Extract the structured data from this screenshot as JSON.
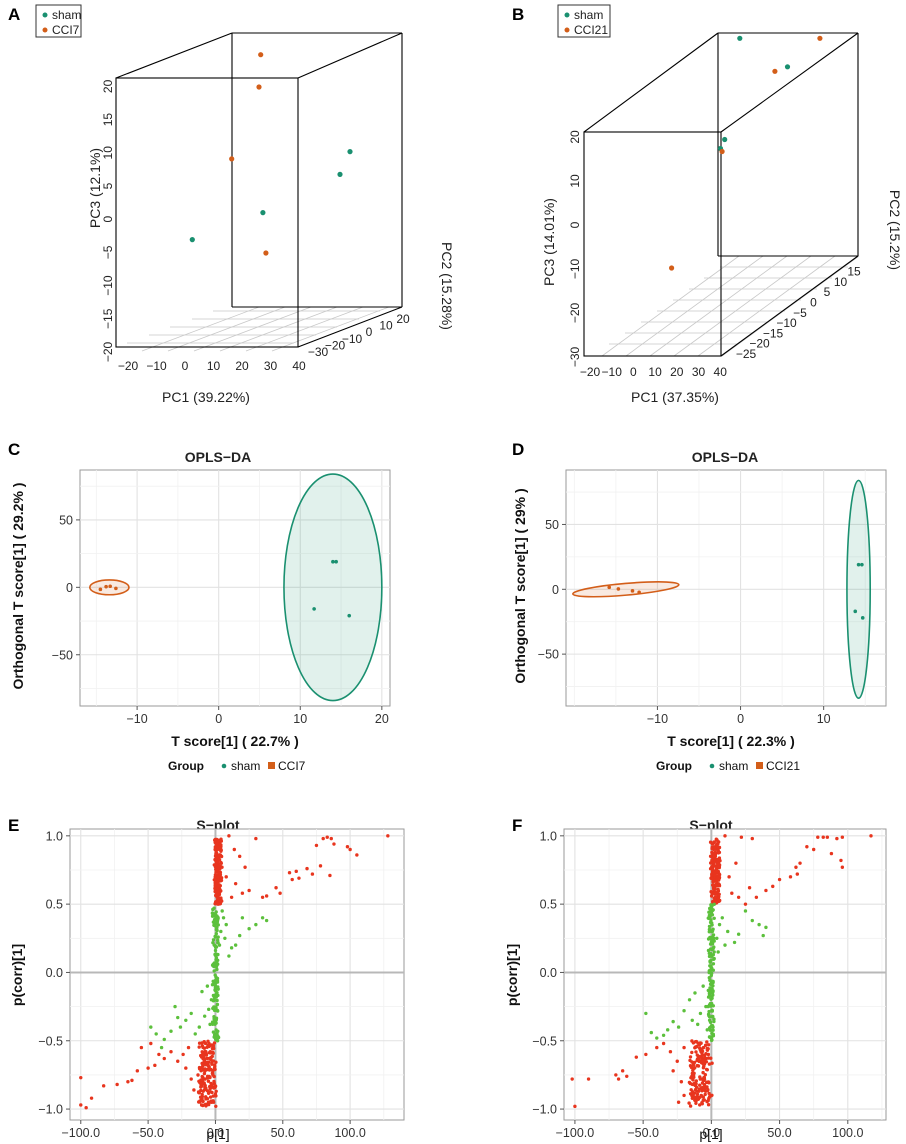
{
  "colors": {
    "sham": "#1a9070",
    "cci": "#d35e19",
    "green_pt": "#5cc03c",
    "red_pt": "#e8351e",
    "grid": "#e6e6e6",
    "axis0": "#b8b8b8"
  },
  "panels": {
    "A": "A",
    "B": "B",
    "C": "C",
    "D": "D",
    "E": "E",
    "F": "F"
  },
  "chart_data": [
    {
      "id": "A",
      "type": "scatter3d",
      "legend": [
        "sham",
        "CCI7"
      ],
      "xlabel": "PC1 (39.22%)",
      "ylabel": "PC3 (12.1%)",
      "zlabel": "PC2 (15.28%)",
      "x_ticks": [
        "−20",
        "−10",
        "0",
        "10",
        "20",
        "30",
        "40"
      ],
      "y_ticks": [
        "−20",
        "−15",
        "−10",
        "−5",
        "0",
        "5",
        "10",
        "15",
        "20"
      ],
      "z_ticks": [
        "−30",
        "−20",
        "−10",
        "0",
        "10",
        "20"
      ],
      "points": [
        {
          "group": "sham",
          "pc1": -12,
          "pc2": -5,
          "pc3": -7
        },
        {
          "group": "sham",
          "pc1": 17,
          "pc2": -15,
          "pc3": -2
        },
        {
          "group": "sham",
          "pc1": 27,
          "pc2": 12,
          "pc3": 1
        },
        {
          "group": "sham",
          "pc1": 28,
          "pc2": 16,
          "pc3": 4
        },
        {
          "group": "CCI7",
          "pc1": 1,
          "pc2": -5,
          "pc3": 5
        },
        {
          "group": "CCI7",
          "pc1": 2,
          "pc2": 10,
          "pc3": 19
        },
        {
          "group": "CCI7",
          "pc1": 6,
          "pc2": 2,
          "pc3": 15
        },
        {
          "group": "CCI7",
          "pc1": 18,
          "pc2": -15,
          "pc3": -8
        }
      ]
    },
    {
      "id": "B",
      "type": "scatter3d",
      "legend": [
        "sham",
        "CCI21"
      ],
      "xlabel": "PC1 (37.35%)",
      "ylabel": "PC3 (14.01%)",
      "zlabel": "PC2 (15.2%)",
      "x_ticks": [
        "−20",
        "−10",
        "0",
        "10",
        "20",
        "30",
        "40"
      ],
      "y_ticks": [
        "−30",
        "−20",
        "−10",
        "0",
        "10",
        "20"
      ],
      "z_ticks": [
        "−25",
        "−20",
        "−15",
        "−10",
        "−5",
        "0",
        "5",
        "10",
        "15"
      ],
      "points": [
        {
          "group": "sham",
          "pc1": -12,
          "pc2": 15,
          "pc3": 20
        },
        {
          "group": "sham",
          "pc1": 35,
          "pc2": -3,
          "pc3": 22
        },
        {
          "group": "sham",
          "pc1": 33,
          "pc2": -25,
          "pc3": 14
        },
        {
          "group": "sham",
          "pc1": 35,
          "pc2": -25,
          "pc3": 16
        },
        {
          "group": "CCI21",
          "pc1": 26,
          "pc2": 15,
          "pc3": 20
        },
        {
          "group": "CCI21",
          "pc1": 29,
          "pc2": -3,
          "pc3": 21
        },
        {
          "group": "CCI21",
          "pc1": 27,
          "pc2": -20,
          "pc3": 11
        },
        {
          "group": "CCI21",
          "pc1": 3,
          "pc2": -20,
          "pc3": -15
        }
      ]
    },
    {
      "id": "C",
      "type": "scatter",
      "title": "OPLS−DA",
      "xlabel": "T score[1] ( 22.7% )",
      "ylabel": "Orthogonal T score[1] ( 29.2% )",
      "xlim": [
        -17,
        21
      ],
      "ylim": [
        -88,
        87
      ],
      "x_ticks": [
        -10,
        0,
        10,
        20
      ],
      "y_ticks": [
        -50,
        0,
        50
      ],
      "legend_title": "Group",
      "legend": [
        "sham",
        "CCI7"
      ],
      "points": [
        {
          "group": "CCI7",
          "x": -14.5,
          "y": -1.5
        },
        {
          "group": "CCI7",
          "x": -13.8,
          "y": 0.5
        },
        {
          "group": "CCI7",
          "x": -13.3,
          "y": 0.8
        },
        {
          "group": "CCI7",
          "x": -12.6,
          "y": -0.8
        },
        {
          "group": "sham",
          "x": 14.0,
          "y": 19
        },
        {
          "group": "sham",
          "x": 14.4,
          "y": 19
        },
        {
          "group": "sham",
          "x": 11.7,
          "y": -16
        },
        {
          "group": "sham",
          "x": 16.0,
          "y": -21
        }
      ],
      "ellipses": [
        {
          "group": "CCI7",
          "cx": -13.4,
          "cy": 0,
          "rx": 2.4,
          "ry": 5.5,
          "angle": 0
        },
        {
          "group": "sham",
          "cx": 14.0,
          "cy": 0,
          "rx": 6.0,
          "ry": 84,
          "angle": 0
        }
      ]
    },
    {
      "id": "D",
      "type": "scatter",
      "title": "OPLS−DA",
      "xlabel": "T score[1] ( 22.3% )",
      "ylabel": "Orthogonal T score[1] ( 29% )",
      "xlim": [
        -21,
        17.5
      ],
      "ylim": [
        -90,
        92
      ],
      "x_ticks": [
        -10,
        0,
        10
      ],
      "y_ticks": [
        -50,
        0,
        50
      ],
      "legend_title": "Group",
      "legend": [
        "sham",
        "CCI21"
      ],
      "points": [
        {
          "group": "CCI21",
          "x": -15.8,
          "y": 1.5
        },
        {
          "group": "CCI21",
          "x": -14.7,
          "y": 0.3
        },
        {
          "group": "CCI21",
          "x": -13.0,
          "y": -1.2
        },
        {
          "group": "CCI21",
          "x": -12.2,
          "y": -2.3
        },
        {
          "group": "sham",
          "x": 14.2,
          "y": 19
        },
        {
          "group": "sham",
          "x": 14.6,
          "y": 19
        },
        {
          "group": "sham",
          "x": 13.8,
          "y": -17
        },
        {
          "group": "sham",
          "x": 14.7,
          "y": -22
        }
      ],
      "ellipses": [
        {
          "group": "CCI21",
          "cx": -13.8,
          "cy": 0,
          "rx": 6.4,
          "ry": 4.5,
          "angle": -5
        },
        {
          "group": "sham",
          "cx": 14.2,
          "cy": 0,
          "rx": 1.4,
          "ry": 84,
          "angle": 0
        }
      ]
    },
    {
      "id": "E",
      "type": "scatter",
      "title": "S−plot",
      "xlabel": "p[1]",
      "ylabel": "p(corr)[1]",
      "xlim": [
        -108,
        140
      ],
      "ylim": [
        -1.08,
        1.05
      ],
      "x_ticks": [
        -100,
        -50,
        0,
        50,
        100
      ],
      "y_ticks": [
        -1.0,
        -0.5,
        0.0,
        0.5,
        1.0
      ],
      "tick_decimals": 1,
      "dense_regions": [
        {
          "color": "red",
          "n": 170,
          "x": [
            -1,
            5
          ],
          "y": [
            0.5,
            0.98
          ]
        },
        {
          "color": "red",
          "n": 170,
          "x": [
            -14,
            1
          ],
          "y": [
            -0.98,
            -0.5
          ]
        },
        {
          "color": "green",
          "n": 140,
          "x": [
            -2.5,
            2.5
          ],
          "y": [
            -0.5,
            0.5
          ]
        }
      ],
      "points_red": [
        [
          10,
          1.0
        ],
        [
          30,
          0.98
        ],
        [
          80,
          0.98
        ],
        [
          83,
          0.99
        ],
        [
          86,
          0.98
        ],
        [
          128,
          1.0
        ],
        [
          75,
          0.93
        ],
        [
          88,
          0.94
        ],
        [
          98,
          0.92
        ],
        [
          100,
          0.9
        ],
        [
          105,
          0.86
        ],
        [
          68,
          0.76
        ],
        [
          72,
          0.72
        ],
        [
          78,
          0.78
        ],
        [
          85,
          0.71
        ],
        [
          55,
          0.73
        ],
        [
          60,
          0.74
        ],
        [
          57,
          0.68
        ],
        [
          62,
          0.69
        ],
        [
          45,
          0.62
        ],
        [
          48,
          0.58
        ],
        [
          38,
          0.56
        ],
        [
          35,
          0.55
        ],
        [
          25,
          0.6
        ],
        [
          20,
          0.58
        ],
        [
          15,
          0.65
        ],
        [
          12,
          0.55
        ],
        [
          8,
          0.7
        ],
        [
          18,
          0.85
        ],
        [
          22,
          0.77
        ],
        [
          14,
          0.9
        ],
        [
          -100,
          -0.77
        ],
        [
          -100,
          -0.97
        ],
        [
          -96,
          -0.99
        ],
        [
          -92,
          -0.92
        ],
        [
          -83,
          -0.83
        ],
        [
          -73,
          -0.82
        ],
        [
          -65,
          -0.8
        ],
        [
          -62,
          -0.79
        ],
        [
          -58,
          -0.72
        ],
        [
          -50,
          -0.7
        ],
        [
          -45,
          -0.68
        ],
        [
          -42,
          -0.6
        ],
        [
          -38,
          -0.63
        ],
        [
          -33,
          -0.58
        ],
        [
          -55,
          -0.55
        ],
        [
          -48,
          -0.52
        ],
        [
          -20,
          -0.55
        ],
        [
          -24,
          -0.6
        ],
        [
          -28,
          -0.65
        ],
        [
          -22,
          -0.7
        ],
        [
          -18,
          -0.78
        ],
        [
          -16,
          -0.86
        ]
      ],
      "points_green": [
        [
          20,
          0.4
        ],
        [
          25,
          0.32
        ],
        [
          30,
          0.35
        ],
        [
          35,
          0.4
        ],
        [
          38,
          0.38
        ],
        [
          18,
          0.27
        ],
        [
          15,
          0.2
        ],
        [
          12,
          0.18
        ],
        [
          10,
          0.12
        ],
        [
          8,
          0.35
        ],
        [
          7,
          0.25
        ],
        [
          6,
          0.4
        ],
        [
          5,
          0.45
        ],
        [
          4,
          0.3
        ],
        [
          3,
          0.2
        ],
        [
          -3,
          -0.2
        ],
        [
          -5,
          -0.27
        ],
        [
          -8,
          -0.32
        ],
        [
          -12,
          -0.4
        ],
        [
          -15,
          -0.45
        ],
        [
          -18,
          -0.3
        ],
        [
          -22,
          -0.35
        ],
        [
          -26,
          -0.4
        ],
        [
          -28,
          -0.33
        ],
        [
          -30,
          -0.25
        ],
        [
          -33,
          -0.43
        ],
        [
          -38,
          -0.49
        ],
        [
          -40,
          -0.55
        ],
        [
          -44,
          -0.45
        ],
        [
          -48,
          -0.4
        ],
        [
          -10,
          -0.14
        ],
        [
          -6,
          -0.1
        ],
        [
          -4,
          -0.38
        ]
      ]
    },
    {
      "id": "F",
      "type": "scatter",
      "title": "S−plot",
      "xlabel": "p[1]",
      "ylabel": "p(corr)[1]",
      "xlim": [
        -108,
        128
      ],
      "ylim": [
        -1.08,
        1.05
      ],
      "x_ticks": [
        -100,
        -50,
        0,
        50,
        100
      ],
      "y_ticks": [
        -1.0,
        -0.5,
        0.0,
        0.5,
        1.0
      ],
      "tick_decimals": 1,
      "dense_regions": [
        {
          "color": "red",
          "n": 170,
          "x": [
            -1,
            7
          ],
          "y": [
            0.5,
            0.98
          ]
        },
        {
          "color": "red",
          "n": 170,
          "x": [
            -18,
            1
          ],
          "y": [
            -0.98,
            -0.5
          ]
        },
        {
          "color": "green",
          "n": 140,
          "x": [
            -2.5,
            2.5
          ],
          "y": [
            -0.5,
            0.5
          ]
        }
      ],
      "points_red": [
        [
          10,
          1.0
        ],
        [
          22,
          0.99
        ],
        [
          30,
          0.98
        ],
        [
          78,
          0.99
        ],
        [
          82,
          0.99
        ],
        [
          85,
          0.99
        ],
        [
          92,
          0.98
        ],
        [
          96,
          0.99
        ],
        [
          117,
          1.0
        ],
        [
          70,
          0.92
        ],
        [
          75,
          0.9
        ],
        [
          88,
          0.87
        ],
        [
          95,
          0.82
        ],
        [
          96,
          0.77
        ],
        [
          65,
          0.8
        ],
        [
          62,
          0.77
        ],
        [
          63,
          0.72
        ],
        [
          58,
          0.7
        ],
        [
          50,
          0.68
        ],
        [
          45,
          0.63
        ],
        [
          40,
          0.6
        ],
        [
          33,
          0.55
        ],
        [
          28,
          0.62
        ],
        [
          25,
          0.5
        ],
        [
          20,
          0.55
        ],
        [
          15,
          0.58
        ],
        [
          13,
          0.7
        ],
        [
          18,
          0.8
        ],
        [
          -102,
          -0.78
        ],
        [
          -100,
          -0.98
        ],
        [
          -90,
          -0.78
        ],
        [
          -70,
          -0.75
        ],
        [
          -68,
          -0.78
        ],
        [
          -65,
          -0.72
        ],
        [
          -62,
          -0.76
        ],
        [
          -55,
          -0.62
        ],
        [
          -48,
          -0.6
        ],
        [
          -40,
          -0.55
        ],
        [
          -35,
          -0.52
        ],
        [
          -30,
          -0.58
        ],
        [
          -25,
          -0.65
        ],
        [
          -28,
          -0.72
        ],
        [
          -22,
          -0.8
        ],
        [
          -20,
          -0.9
        ],
        [
          -24,
          -0.95
        ],
        [
          -20,
          -0.55
        ]
      ],
      "points_green": [
        [
          25,
          0.45
        ],
        [
          30,
          0.38
        ],
        [
          35,
          0.35
        ],
        [
          40,
          0.33
        ],
        [
          38,
          0.27
        ],
        [
          20,
          0.28
        ],
        [
          17,
          0.22
        ],
        [
          12,
          0.3
        ],
        [
          10,
          0.2
        ],
        [
          8,
          0.4
        ],
        [
          6,
          0.35
        ],
        [
          5,
          0.15
        ],
        [
          4,
          0.25
        ],
        [
          -4,
          -0.25
        ],
        [
          -8,
          -0.3
        ],
        [
          -10,
          -0.38
        ],
        [
          -14,
          -0.35
        ],
        [
          -16,
          -0.2
        ],
        [
          -20,
          -0.28
        ],
        [
          -24,
          -0.4
        ],
        [
          -28,
          -0.36
        ],
        [
          -32,
          -0.42
        ],
        [
          -35,
          -0.46
        ],
        [
          -40,
          -0.48
        ],
        [
          -44,
          -0.44
        ],
        [
          -48,
          -0.3
        ],
        [
          -12,
          -0.15
        ],
        [
          -6,
          -0.1
        ],
        [
          -3,
          -0.42
        ]
      ]
    }
  ]
}
